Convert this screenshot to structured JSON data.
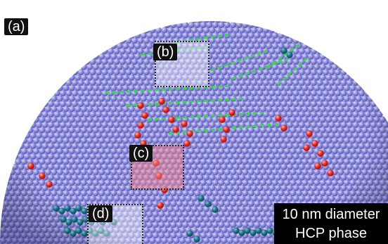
{
  "figure": {
    "panel_main": "(a)",
    "inset_b": "(b)",
    "inset_c": "(c)",
    "inset_d": "(d)",
    "caption_line1": "10 nm diameter",
    "caption_line2": "HCP phase"
  },
  "colors": {
    "atom": "#8f8ee0",
    "atom_shade": "#4a49a6",
    "atom_highlight": "#dcdcf8",
    "stacking_fault_green": "#3fd25a",
    "red_atoms": "#e12a2a",
    "teal_atoms": "#1f6f86",
    "background": "#ffffff"
  }
}
